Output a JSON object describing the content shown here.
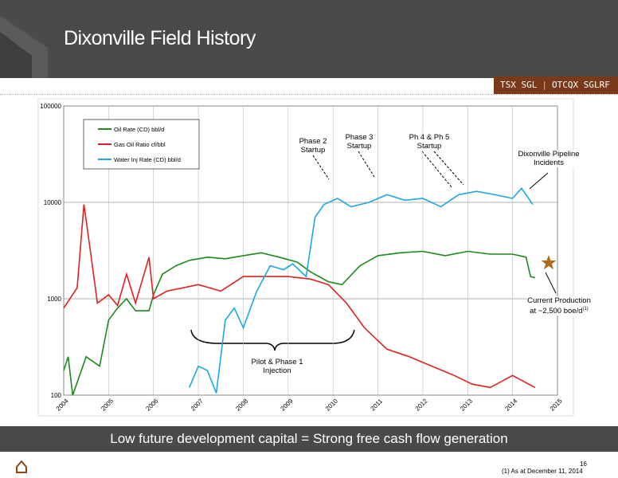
{
  "header": {
    "title": "Dixonville Field History",
    "ticker_1": "TSX SGL",
    "ticker_2": "OTCQX SGLRF"
  },
  "chart_data": {
    "type": "line",
    "xlim": [
      2004,
      2015
    ],
    "xticks": [
      2004,
      2005,
      2006,
      2007,
      2008,
      2009,
      2010,
      2011,
      2012,
      2013,
      2014,
      2015
    ],
    "ylim": [
      100,
      100000
    ],
    "yticks": [
      100,
      1000,
      10000,
      100000
    ],
    "log_y": true,
    "grid": true,
    "series": [
      {
        "name": "Oil Rate (CD) bbl/d",
        "color": "#1a8a1a",
        "x": [
          2004.0,
          2004.1,
          2004.2,
          2004.5,
          2004.8,
          2005.0,
          2005.2,
          2005.4,
          2005.6,
          2005.9,
          2006.0,
          2006.2,
          2006.5,
          2006.8,
          2007.2,
          2007.6,
          2008.0,
          2008.4,
          2008.8,
          2009.2,
          2009.5,
          2009.9,
          2010.2,
          2010.6,
          2011.0,
          2011.5,
          2012.0,
          2012.5,
          2013.0,
          2013.5,
          2014.0,
          2014.3,
          2014.4,
          2014.5
        ],
        "values": [
          180,
          250,
          100,
          250,
          200,
          600,
          800,
          1000,
          750,
          750,
          1100,
          1800,
          2200,
          2500,
          2700,
          2600,
          2800,
          3000,
          2700,
          2400,
          1900,
          1500,
          1400,
          2200,
          2800,
          3000,
          3100,
          2800,
          3100,
          2900,
          2900,
          2700,
          1700,
          1650
        ]
      },
      {
        "name": "Gas Oil Ratio cf/bbl",
        "color": "#e02020",
        "x": [
          2004.0,
          2004.3,
          2004.45,
          2004.6,
          2004.75,
          2005.0,
          2005.2,
          2005.4,
          2005.6,
          2005.9,
          2006.0,
          2006.3,
          2007.0,
          2007.5,
          2008.0,
          2008.5,
          2009.0,
          2009.5,
          2009.9,
          2010.3,
          2010.7,
          2011.2,
          2011.7,
          2012.2,
          2012.7,
          2013.1,
          2013.5,
          2014.0,
          2014.5
        ],
        "values": [
          800,
          1300,
          9500,
          3000,
          900,
          1100,
          850,
          1800,
          900,
          2700,
          1000,
          1200,
          1400,
          1200,
          1700,
          1700,
          1700,
          1600,
          1400,
          900,
          500,
          300,
          250,
          200,
          160,
          130,
          120,
          160,
          120
        ]
      },
      {
        "name": "Water Inj Rate (CD) bbl/d",
        "color": "#1aa8e0",
        "x": [
          2006.8,
          2007.0,
          2007.2,
          2007.4,
          2007.6,
          2007.8,
          2008.0,
          2008.3,
          2008.6,
          2008.9,
          2009.1,
          2009.4,
          2009.6,
          2009.8,
          2010.1,
          2010.4,
          2010.8,
          2011.2,
          2011.6,
          2012.0,
          2012.4,
          2012.8,
          2013.2,
          2013.6,
          2014.0,
          2014.2,
          2014.45
        ],
        "values": [
          120,
          200,
          180,
          105,
          600,
          800,
          500,
          1200,
          2200,
          2000,
          2300,
          1700,
          7000,
          9500,
          11000,
          9000,
          10000,
          12000,
          10500,
          11000,
          9000,
          12000,
          13000,
          12000,
          11000,
          14000,
          9500
        ]
      }
    ],
    "annotations": [
      "Phase 2 Startup",
      "Phase 3 Startup",
      "Ph 4 & Ph 5 Startup",
      "Dixonville Pipeline Incidents",
      "Current Production at ~2,500 boe/d",
      "Pilot & Phase 1 Injection"
    ],
    "annotation_note": "(1)"
  },
  "footer": {
    "banner": "Low future development capital = Strong free cash flow generation",
    "page": "16",
    "note": "(1) As at December 11, 2014"
  }
}
